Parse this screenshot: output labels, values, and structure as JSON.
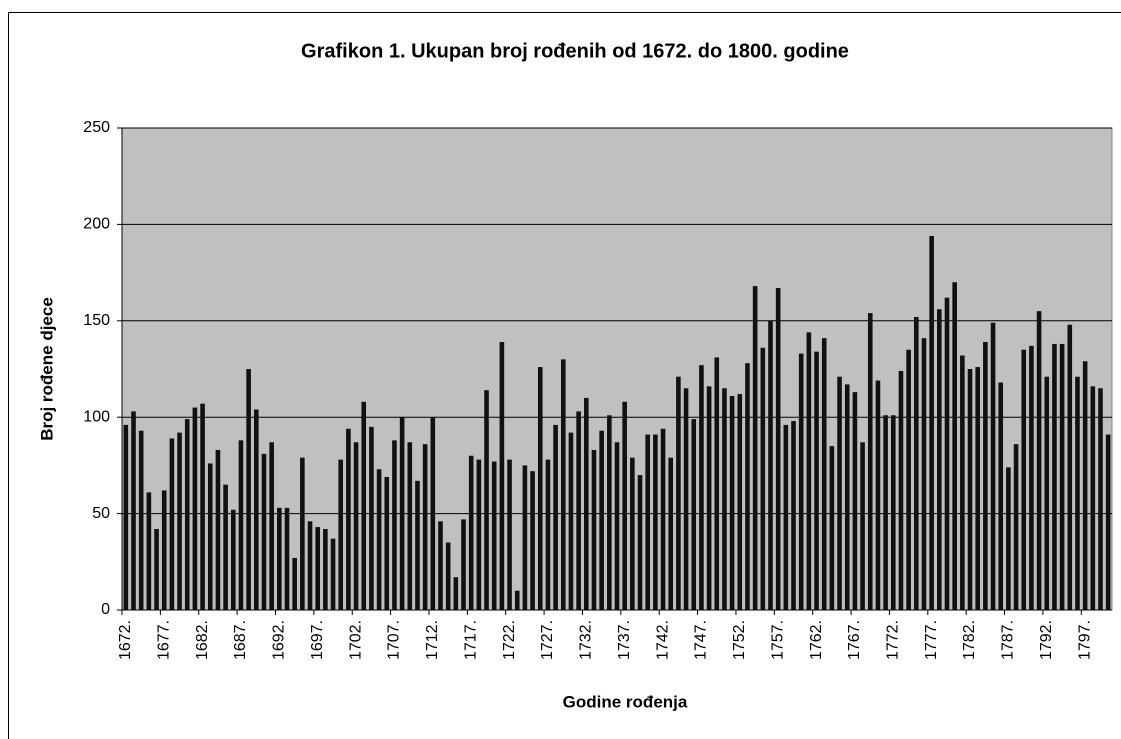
{
  "chart_data": {
    "type": "bar",
    "title": "Grafikon 1. Ukupan broj rođenih od 1672. do 1800. godine",
    "x_label": "Godine rođenja",
    "y_label": "Broj rođene djece",
    "categories": [
      "1672.",
      null,
      null,
      null,
      null,
      "1677.",
      null,
      null,
      null,
      null,
      "1682.",
      null,
      null,
      null,
      null,
      "1687.",
      null,
      null,
      null,
      null,
      "1692.",
      null,
      null,
      null,
      null,
      "1697.",
      null,
      null,
      null,
      null,
      "1702.",
      null,
      null,
      null,
      null,
      "1707.",
      null,
      null,
      null,
      null,
      "1712.",
      null,
      null,
      null,
      null,
      "1717.",
      null,
      null,
      null,
      null,
      "1722.",
      null,
      null,
      null,
      null,
      "1727.",
      null,
      null,
      null,
      null,
      "1732.",
      null,
      null,
      null,
      null,
      "1737.",
      null,
      null,
      null,
      null,
      "1742.",
      null,
      null,
      null,
      null,
      "1747.",
      null,
      null,
      null,
      null,
      "1752.",
      null,
      null,
      null,
      null,
      "1757.",
      null,
      null,
      null,
      null,
      "1762.",
      null,
      null,
      null,
      null,
      "1767.",
      null,
      null,
      null,
      null,
      "1772.",
      null,
      null,
      null,
      null,
      "1777.",
      null,
      null,
      null,
      null,
      "1782.",
      null,
      null,
      null,
      null,
      "1787.",
      null,
      null,
      null,
      null,
      "1792.",
      null,
      null,
      null,
      null,
      "1797.",
      null,
      null,
      null
    ],
    "values": [
      96,
      103,
      93,
      61,
      42,
      62,
      89,
      92,
      99,
      105,
      107,
      76,
      83,
      65,
      52,
      88,
      125,
      104,
      81,
      87,
      53,
      53,
      27,
      79,
      46,
      43,
      42,
      37,
      78,
      94,
      87,
      108,
      95,
      73,
      69,
      88,
      100,
      87,
      67,
      86,
      100,
      46,
      35,
      17,
      47,
      80,
      78,
      114,
      77,
      139,
      78,
      10,
      75,
      72,
      126,
      78,
      96,
      130,
      92,
      103,
      110,
      83,
      93,
      101,
      87,
      108,
      79,
      70,
      91,
      91,
      94,
      79,
      121,
      115,
      99,
      127,
      116,
      131,
      115,
      111,
      112,
      128,
      168,
      136,
      150,
      167,
      96,
      98,
      133,
      144,
      134,
      141,
      85,
      121,
      117,
      113,
      87,
      154,
      119,
      101,
      101,
      124,
      135,
      152,
      141,
      194,
      156,
      162,
      170,
      132,
      125,
      126,
      139,
      149,
      118,
      74,
      86,
      135,
      137,
      155,
      121,
      138,
      138,
      148,
      121,
      129,
      116,
      115,
      91
    ],
    "color": "#111111",
    "plot_background": "#c0c0c0",
    "ylim": [
      0,
      250
    ],
    "yticks": [
      0,
      50,
      100,
      150,
      200,
      250
    ],
    "grid": true
  }
}
